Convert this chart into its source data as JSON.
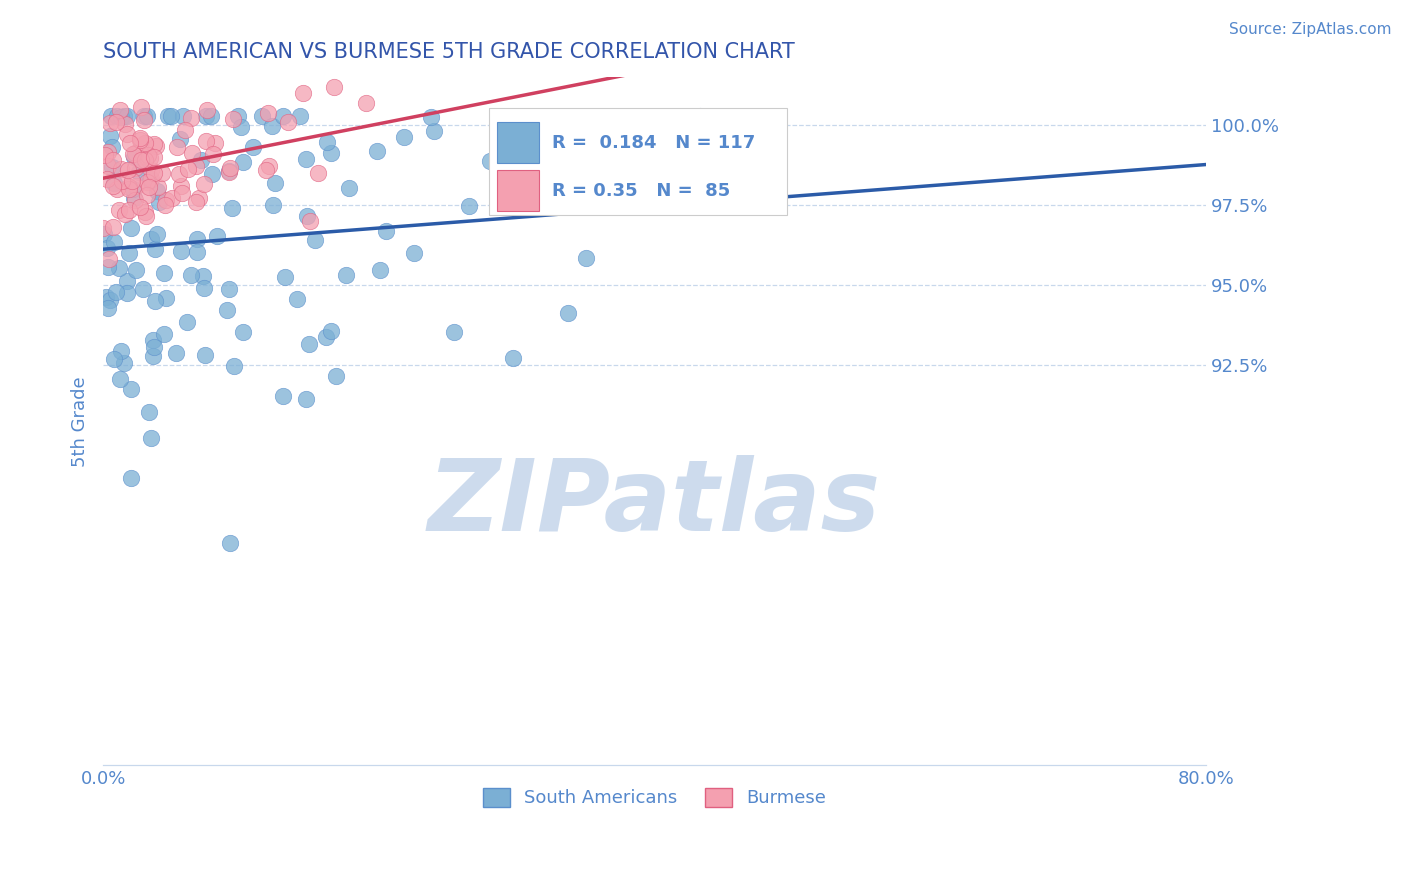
{
  "title": "SOUTH AMERICAN VS BURMESE 5TH GRADE CORRELATION CHART",
  "source": "Source: ZipAtlas.com",
  "ylabel": "5th Grade",
  "xlim": [
    0.0,
    80.0
  ],
  "ylim": [
    80.0,
    101.5
  ],
  "yticks": [
    92.5,
    95.0,
    97.5,
    100.0
  ],
  "xticks": [
    0.0,
    80.0
  ],
  "xticklabels": [
    "0.0%",
    "80.0%"
  ],
  "yticklabels": [
    "92.5%",
    "95.0%",
    "97.5%",
    "100.0%"
  ],
  "blue_color": "#7BAFD4",
  "blue_edge_color": "#5B8FCC",
  "pink_color": "#F4A0B0",
  "pink_edge_color": "#E06080",
  "blue_line_color": "#2B5BA8",
  "pink_line_color": "#D04060",
  "R_blue": 0.184,
  "N_blue": 117,
  "R_pink": 0.35,
  "N_pink": 85,
  "legend_labels": [
    "South Americans",
    "Burmese"
  ],
  "watermark": "ZIPatlas",
  "watermark_color": "#C8D8EC",
  "title_color": "#3355AA",
  "axis_color": "#5588CC",
  "grid_color": "#C8D8EC",
  "blue_seed": 42,
  "pink_seed": 7
}
